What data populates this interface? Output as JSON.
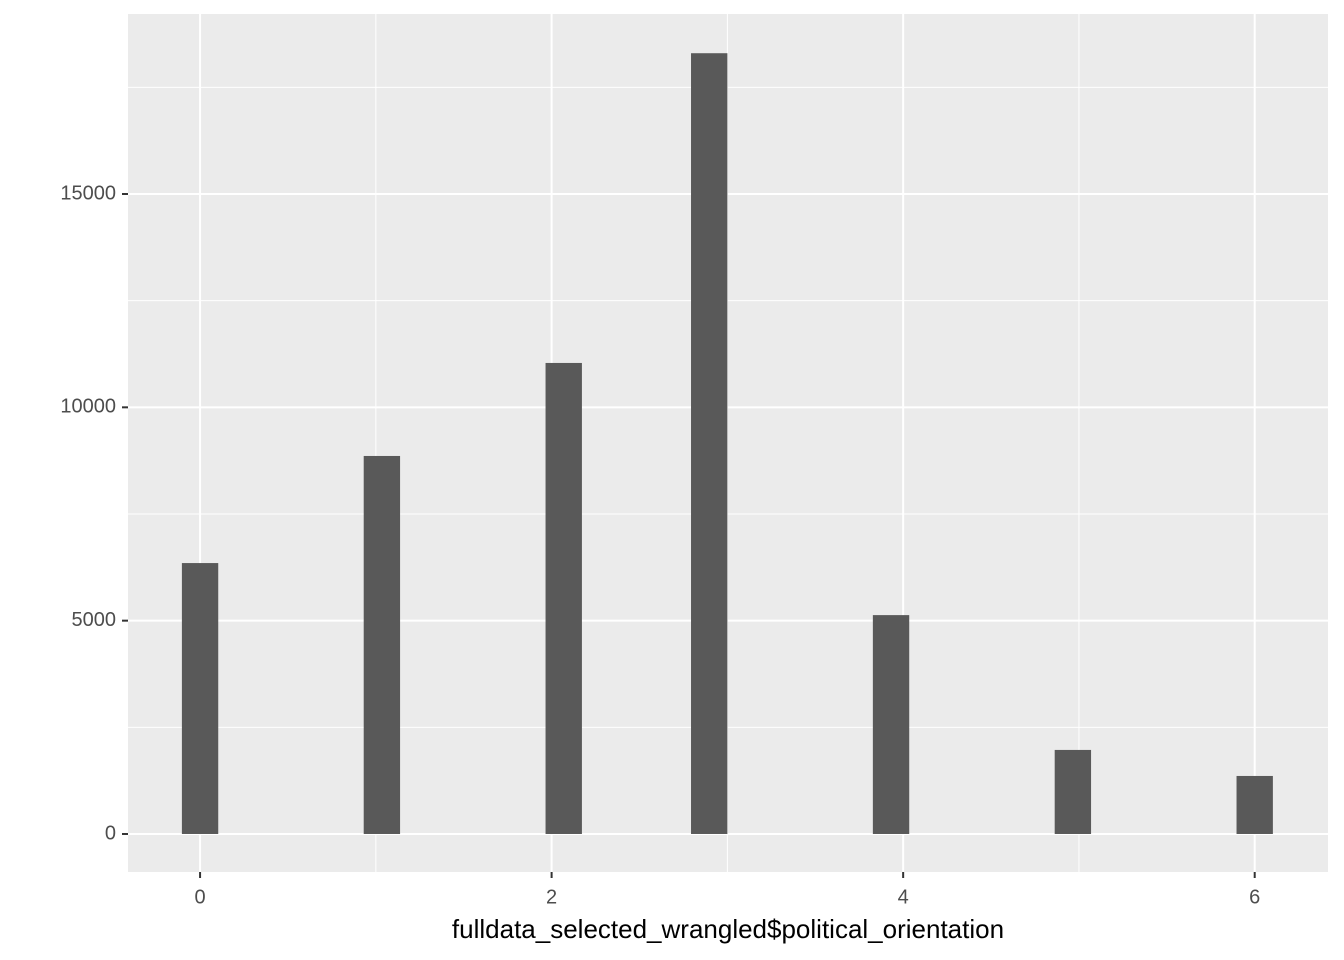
{
  "chart_data": {
    "type": "histogram",
    "x_label": "fulldata_selected_wrangled$political_orientation",
    "bins": [
      -0.1034,
      0.1034,
      0.3103,
      0.5172,
      0.7241,
      0.931,
      1.1379,
      1.3448,
      1.5517,
      1.7586,
      1.9655,
      2.1724,
      2.3793,
      2.5862,
      2.7931,
      3.0,
      3.2069,
      3.4138,
      3.6207,
      3.8276,
      4.0345,
      4.2414,
      4.4483,
      4.6552,
      4.8621,
      5.069,
      5.2759,
      5.4828,
      5.6897,
      5.8966,
      6.1034
    ],
    "values": [
      6350,
      0,
      0,
      0,
      0,
      8860,
      0,
      0,
      0,
      0,
      11040,
      0,
      0,
      0,
      18300,
      0,
      0,
      0,
      0,
      5130,
      0,
      0,
      0,
      0,
      1970,
      0,
      0,
      0,
      0,
      1360
    ],
    "color": "#595959",
    "xlim": [
      -0.41,
      6.417
    ],
    "xticks": [
      0,
      2,
      4,
      6
    ],
    "ylim": [
      -891,
      19219
    ],
    "yticks": [
      0,
      5000,
      10000,
      15000
    ],
    "grid": true
  }
}
